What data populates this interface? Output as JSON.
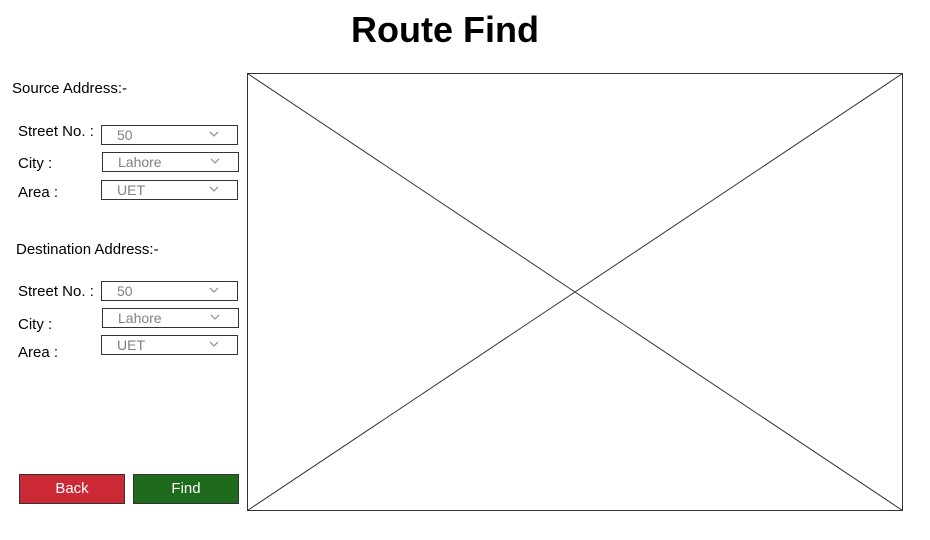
{
  "title": "Route Find",
  "source": {
    "heading": "Source Address:-",
    "street": {
      "label": "Street No. :",
      "value": "50"
    },
    "city": {
      "label": "City :",
      "value": "Lahore"
    },
    "area": {
      "label": "Area :",
      "value": "UET"
    }
  },
  "destination": {
    "heading": "Destination Address:-",
    "street": {
      "label": "Street No. :",
      "value": "50"
    },
    "city": {
      "label": "City :",
      "value": "Lahore"
    },
    "area": {
      "label": "Area :",
      "value": "UET"
    }
  },
  "buttons": {
    "back": "Back",
    "find": "Find"
  },
  "colors": {
    "back_button": "#cc2936",
    "find_button": "#1e6b1e",
    "placeholder_text": "#808080",
    "border": "#333333"
  },
  "map_placeholder_icon": "crossed-box-placeholder-icon"
}
